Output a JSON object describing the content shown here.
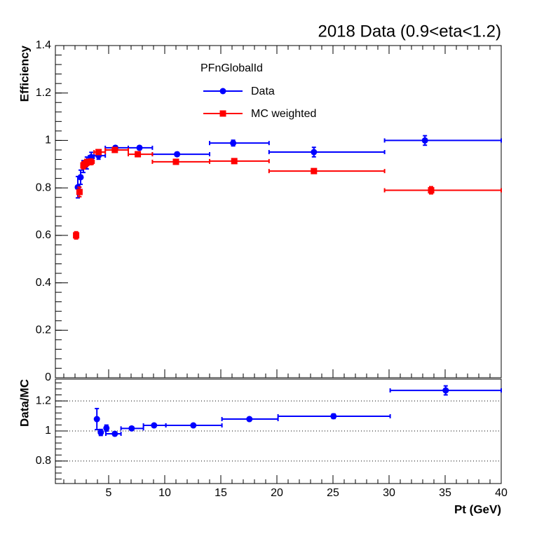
{
  "chart_data": [
    {
      "type": "errorbar",
      "title": "2018 Data (0.9<eta<1.2)",
      "ylabel": "Efficiency",
      "legend_title": "PFnGlobalId",
      "xlim": [
        0.25,
        40
      ],
      "ylim": [
        0,
        1.4
      ],
      "yticks": [
        0,
        0.2,
        0.4,
        0.6,
        0.8,
        1,
        1.2,
        1.4
      ],
      "series": [
        {
          "name": "Data",
          "color": "#0000ff",
          "marker": "circle",
          "x": [
            2.25,
            2.5,
            2.75,
            3.05,
            3.45,
            4.1,
            5.6,
            7.75,
            11.1,
            16.1,
            23.3,
            33.2
          ],
          "x_low": [
            2.1,
            2.35,
            2.6,
            2.85,
            3.2,
            3.7,
            4.7,
            6.75,
            8.9,
            14,
            19.3,
            29.6
          ],
          "x_high": [
            2.35,
            2.6,
            2.85,
            3.2,
            3.7,
            4.7,
            6.75,
            8.9,
            14,
            19.3,
            29.6,
            40
          ],
          "values": [
            0.803,
            0.845,
            0.89,
            0.905,
            0.93,
            0.936,
            0.969,
            0.969,
            0.942,
            0.989,
            0.951,
            1.0
          ],
          "yerr": [
            0.045,
            0.03,
            0.025,
            0.025,
            0.02,
            0.015,
            0.008,
            0.008,
            0.008,
            0.012,
            0.02,
            0.02
          ]
        },
        {
          "name": "MC weighted",
          "color": "#ff0000",
          "marker": "square",
          "x": [
            2.1,
            2.4,
            2.75,
            3.0,
            3.4,
            4.1,
            5.55,
            7.6,
            11.0,
            16.2,
            23.3,
            33.75
          ],
          "x_low": [
            2.0,
            2.35,
            2.6,
            2.85,
            3.2,
            3.7,
            4.7,
            6.75,
            8.9,
            14,
            19.3,
            29.6
          ],
          "x_high": [
            2.2,
            2.6,
            2.85,
            3.2,
            3.7,
            4.7,
            6.75,
            8.9,
            14,
            19.3,
            29.6,
            40
          ],
          "values": [
            0.6,
            0.783,
            0.895,
            0.905,
            0.91,
            0.951,
            0.96,
            0.942,
            0.91,
            0.913,
            0.871,
            0.79
          ],
          "yerr": [
            0.015,
            0.02,
            0.015,
            0.015,
            0.012,
            0.01,
            0.006,
            0.006,
            0.006,
            0.006,
            0.008,
            0.015
          ]
        }
      ]
    },
    {
      "type": "errorbar",
      "ylabel": "Data/MC",
      "xlabel": "Pt (GeV)",
      "grid": true,
      "xlim": [
        0.25,
        40
      ],
      "ylim": [
        0.65,
        1.345
      ],
      "xticks": [
        5,
        10,
        15,
        20,
        25,
        30,
        35,
        40
      ],
      "yticks": [
        0.8,
        1,
        1.2
      ],
      "series": [
        {
          "color": "#0000ff",
          "marker": "circle",
          "x": [
            3.95,
            4.3,
            4.8,
            5.55,
            7.05,
            9.05,
            12.55,
            17.55,
            25.05,
            35.05
          ],
          "x_low": [
            3.9,
            4.25,
            4.75,
            4.75,
            6.1,
            8.1,
            10.1,
            15.1,
            20.1,
            30.1
          ],
          "x_high": [
            4.0,
            4.35,
            4.85,
            6.1,
            8.1,
            10.1,
            15.1,
            20.1,
            30.1,
            40
          ],
          "values": [
            1.079,
            0.99,
            1.019,
            0.981,
            1.017,
            1.037,
            1.037,
            1.079,
            1.098,
            1.27
          ],
          "yerr": [
            0.07,
            0.02,
            0.02,
            0.01,
            0.01,
            0.01,
            0.008,
            0.01,
            0.015,
            0.03
          ]
        }
      ]
    }
  ]
}
